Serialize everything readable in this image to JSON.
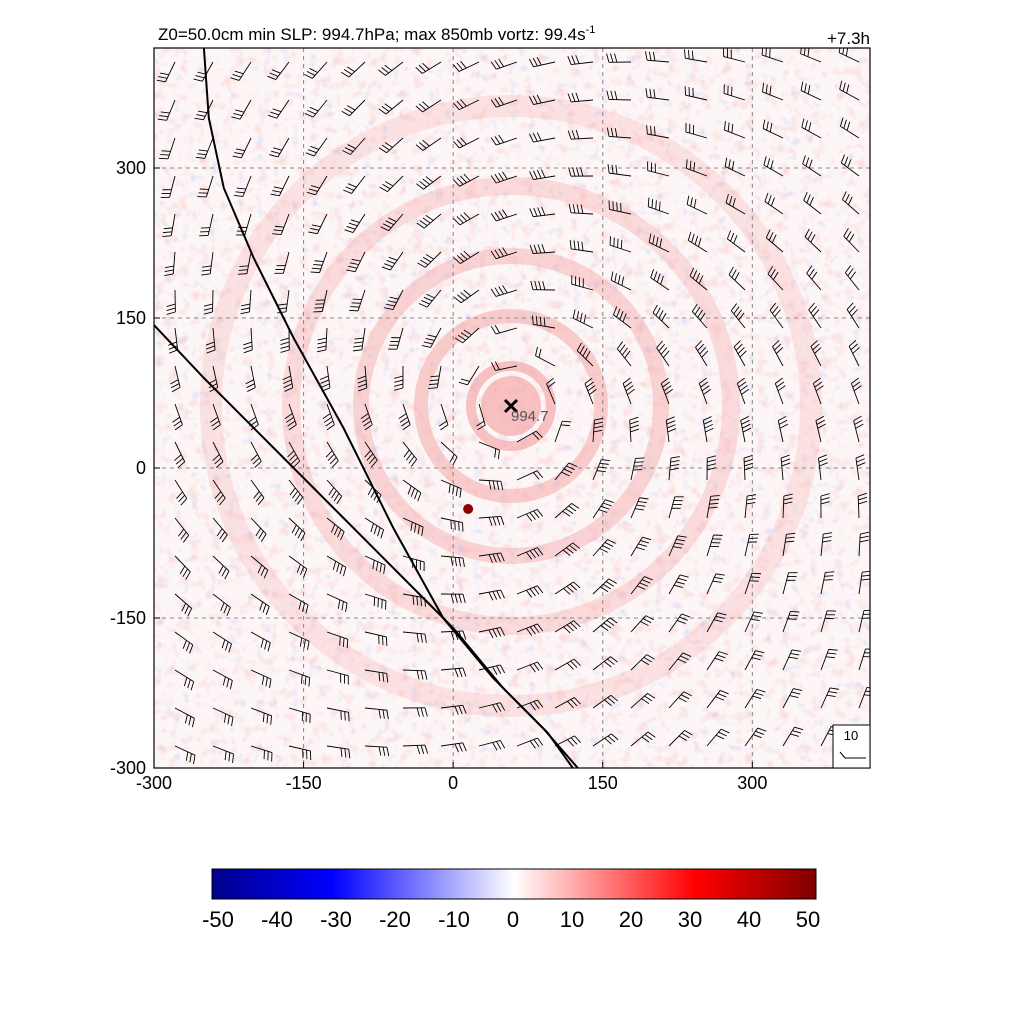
{
  "chart_data": {
    "type": "heatmap",
    "title_left": "Z0=50.0cm  min SLP: 994.7hPa; max 850mb vortz:  99.4s",
    "title_left_sup": "-1",
    "title_right": "+7.3h",
    "x_ticks": [
      -300,
      -150,
      0,
      150,
      300
    ],
    "y_ticks": [
      -300,
      -150,
      0,
      150,
      300
    ],
    "xlim": [
      -300,
      418
    ],
    "ylim": [
      -300,
      420
    ],
    "grid": true,
    "grid_style": "dashed",
    "center_marker": {
      "x": 58,
      "y": 62,
      "label": "994.7"
    },
    "max_spot": {
      "x": 15,
      "y": -41
    },
    "track_lines": [
      [
        [
          -250,
          420
        ],
        [
          -245,
          350
        ],
        [
          -230,
          280
        ],
        [
          -200,
          210
        ],
        [
          -160,
          130
        ],
        [
          -110,
          40
        ],
        [
          -60,
          -60
        ],
        [
          -10,
          -150
        ],
        [
          40,
          -210
        ],
        [
          90,
          -260
        ],
        [
          125,
          -300
        ]
      ],
      [
        [
          -300,
          143
        ],
        [
          -250,
          90
        ],
        [
          -180,
          20
        ],
        [
          -110,
          -50
        ],
        [
          -50,
          -110
        ],
        [
          0,
          -160
        ],
        [
          50,
          -220
        ],
        [
          95,
          -265
        ],
        [
          120,
          -300
        ]
      ]
    ],
    "wind_legend": {
      "label": "10"
    },
    "colorbar": {
      "ticks": [
        "-50",
        "-40",
        "-30",
        "-20",
        "-10",
        "0",
        "10",
        "20",
        "30",
        "40",
        "50"
      ],
      "range": [
        -50,
        50
      ],
      "colors": [
        "#00008b",
        "#0000ff",
        "#ffffff",
        "#ff0000",
        "#7f0000"
      ]
    }
  }
}
